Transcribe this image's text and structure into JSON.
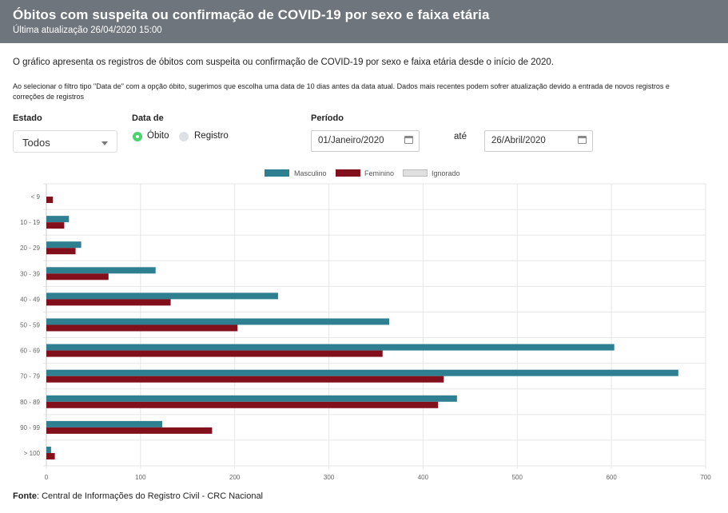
{
  "header": {
    "title": "Óbitos com suspeita ou confirmação de COVID-19 por sexo e faixa etária",
    "subtitle": "Última atualização 26/04/2020 15:00"
  },
  "description": "O gráfico apresenta os registros de óbitos com suspeita ou confirmação de COVID-19 por sexo e faixa etária desde o início de 2020.",
  "note": "Ao selecionar o filtro tipo \"Data de\" com a opção óbito, sugerimos que escolha uma data de 10 dias antes da data atual. Dados mais recentes podem sofrer atualização devido a entrada de novos registros e correções de registros",
  "filters": {
    "estado": {
      "label": "Estado",
      "value": "Todos"
    },
    "data_de": {
      "label": "Data de",
      "options": [
        {
          "label": "Óbito",
          "selected": true
        },
        {
          "label": "Registro",
          "selected": false
        }
      ]
    },
    "periodo": {
      "label": "Período",
      "start": "01/Janeiro/2020",
      "separator": "até",
      "end": "26/Abril/2020"
    }
  },
  "colors": {
    "header_bg": "#6e757c",
    "masculino": "#2e7f90",
    "feminino": "#82101c",
    "ignorado": "#e0e0e0"
  },
  "chart_data": {
    "type": "bar",
    "orientation": "horizontal",
    "categories": [
      "< 9",
      "10 - 19",
      "20 - 29",
      "30 - 39",
      "40 - 49",
      "50 - 59",
      "60 - 69",
      "70 - 79",
      "80 - 89",
      "90 - 99",
      "> 100"
    ],
    "series": [
      {
        "name": "Masculino",
        "values": [
          0,
          24,
          37,
          116,
          246,
          364,
          603,
          671,
          436,
          123,
          5
        ]
      },
      {
        "name": "Feminino",
        "values": [
          7,
          19,
          31,
          66,
          132,
          203,
          357,
          422,
          416,
          176,
          9
        ]
      },
      {
        "name": "Ignorado",
        "values": [
          0,
          0,
          0,
          0,
          0,
          0,
          0,
          0,
          0,
          0,
          0
        ]
      }
    ],
    "xlim": [
      0,
      700
    ],
    "xticks": [
      "0",
      "100",
      "200",
      "300",
      "400",
      "500",
      "600",
      "700"
    ],
    "legend_position": "top",
    "grid": true
  },
  "footer": {
    "label": "Fonte",
    "text": ": Central de Informações do Registro Civil - CRC Nacional"
  }
}
